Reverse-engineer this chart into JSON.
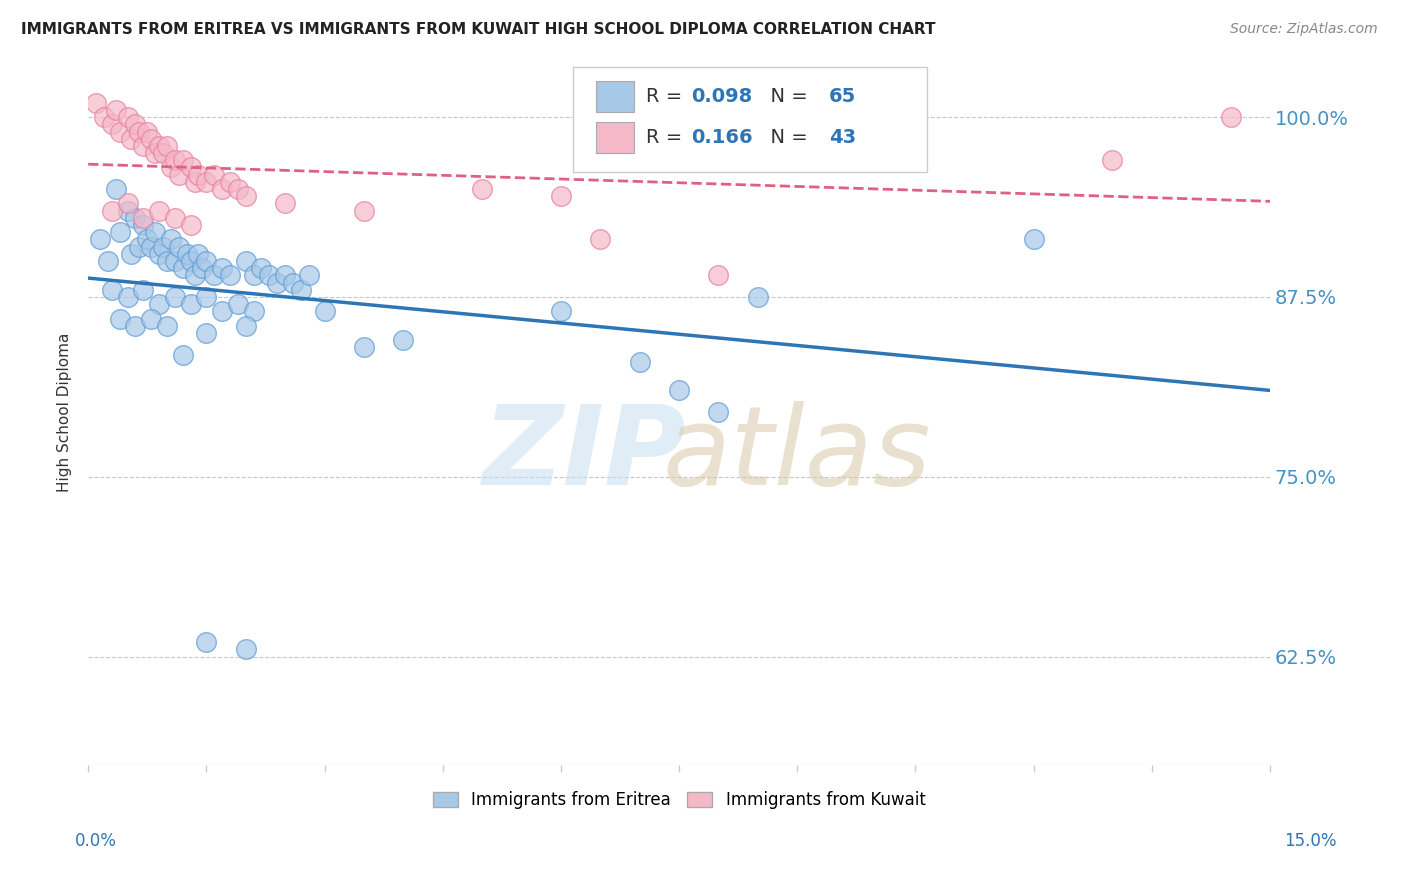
{
  "title": "IMMIGRANTS FROM ERITREA VS IMMIGRANTS FROM KUWAIT HIGH SCHOOL DIPLOMA CORRELATION CHART",
  "source": "Source: ZipAtlas.com",
  "ylabel": "High School Diploma",
  "legend_blue_R": "0.098",
  "legend_blue_N": "65",
  "legend_pink_R": "0.166",
  "legend_pink_N": "43",
  "legend_blue_label": "Immigrants from Eritrea",
  "legend_pink_label": "Immigrants from Kuwait",
  "blue_color": "#a8c8e8",
  "blue_edge_color": "#5b9bd5",
  "pink_color": "#f4b8c8",
  "pink_edge_color": "#e87ca0",
  "trend_blue_color": "#2e75b6",
  "trend_pink_color": "#e06080",
  "xlim": [
    0,
    15
  ],
  "ylim": [
    55,
    104
  ],
  "yticks": [
    62.5,
    75.0,
    87.5,
    100.0
  ],
  "blue_scatter": [
    [
      0.15,
      91.5
    ],
    [
      0.25,
      90.0
    ],
    [
      0.35,
      95.0
    ],
    [
      0.4,
      92.0
    ],
    [
      0.5,
      93.5
    ],
    [
      0.55,
      90.5
    ],
    [
      0.6,
      93.0
    ],
    [
      0.65,
      91.0
    ],
    [
      0.7,
      92.5
    ],
    [
      0.75,
      91.5
    ],
    [
      0.8,
      91.0
    ],
    [
      0.85,
      92.0
    ],
    [
      0.9,
      90.5
    ],
    [
      0.95,
      91.0
    ],
    [
      1.0,
      90.0
    ],
    [
      1.05,
      91.5
    ],
    [
      1.1,
      90.0
    ],
    [
      1.15,
      91.0
    ],
    [
      1.2,
      89.5
    ],
    [
      1.25,
      90.5
    ],
    [
      1.3,
      90.0
    ],
    [
      1.35,
      89.0
    ],
    [
      1.4,
      90.5
    ],
    [
      1.45,
      89.5
    ],
    [
      1.5,
      90.0
    ],
    [
      1.6,
      89.0
    ],
    [
      1.7,
      89.5
    ],
    [
      1.8,
      89.0
    ],
    [
      2.0,
      90.0
    ],
    [
      2.1,
      89.0
    ],
    [
      2.2,
      89.5
    ],
    [
      2.3,
      89.0
    ],
    [
      2.4,
      88.5
    ],
    [
      2.5,
      89.0
    ],
    [
      2.6,
      88.5
    ],
    [
      2.7,
      88.0
    ],
    [
      2.8,
      89.0
    ],
    [
      0.3,
      88.0
    ],
    [
      0.5,
      87.5
    ],
    [
      0.7,
      88.0
    ],
    [
      0.9,
      87.0
    ],
    [
      1.1,
      87.5
    ],
    [
      1.3,
      87.0
    ],
    [
      1.5,
      87.5
    ],
    [
      1.7,
      86.5
    ],
    [
      1.9,
      87.0
    ],
    [
      2.1,
      86.5
    ],
    [
      0.4,
      86.0
    ],
    [
      0.6,
      85.5
    ],
    [
      0.8,
      86.0
    ],
    [
      1.0,
      85.5
    ],
    [
      1.5,
      85.0
    ],
    [
      2.0,
      85.5
    ],
    [
      3.0,
      86.5
    ],
    [
      4.0,
      84.5
    ],
    [
      1.2,
      83.5
    ],
    [
      3.5,
      84.0
    ],
    [
      6.0,
      86.5
    ],
    [
      8.5,
      87.5
    ],
    [
      7.0,
      83.0
    ],
    [
      12.0,
      91.5
    ],
    [
      7.5,
      81.0
    ],
    [
      8.0,
      79.5
    ],
    [
      1.5,
      63.5
    ],
    [
      2.0,
      63.0
    ]
  ],
  "pink_scatter": [
    [
      0.1,
      101.0
    ],
    [
      0.2,
      100.0
    ],
    [
      0.3,
      99.5
    ],
    [
      0.35,
      100.5
    ],
    [
      0.4,
      99.0
    ],
    [
      0.5,
      100.0
    ],
    [
      0.55,
      98.5
    ],
    [
      0.6,
      99.5
    ],
    [
      0.65,
      99.0
    ],
    [
      0.7,
      98.0
    ],
    [
      0.75,
      99.0
    ],
    [
      0.8,
      98.5
    ],
    [
      0.85,
      97.5
    ],
    [
      0.9,
      98.0
    ],
    [
      0.95,
      97.5
    ],
    [
      1.0,
      98.0
    ],
    [
      1.05,
      96.5
    ],
    [
      1.1,
      97.0
    ],
    [
      1.15,
      96.0
    ],
    [
      1.2,
      97.0
    ],
    [
      1.3,
      96.5
    ],
    [
      1.35,
      95.5
    ],
    [
      1.4,
      96.0
    ],
    [
      1.5,
      95.5
    ],
    [
      1.6,
      96.0
    ],
    [
      1.7,
      95.0
    ],
    [
      1.8,
      95.5
    ],
    [
      1.9,
      95.0
    ],
    [
      2.0,
      94.5
    ],
    [
      0.3,
      93.5
    ],
    [
      0.5,
      94.0
    ],
    [
      0.7,
      93.0
    ],
    [
      0.9,
      93.5
    ],
    [
      1.1,
      93.0
    ],
    [
      1.3,
      92.5
    ],
    [
      2.5,
      94.0
    ],
    [
      3.5,
      93.5
    ],
    [
      5.0,
      95.0
    ],
    [
      6.0,
      94.5
    ],
    [
      6.5,
      91.5
    ],
    [
      8.0,
      89.0
    ],
    [
      13.0,
      97.0
    ],
    [
      14.5,
      100.0
    ]
  ]
}
